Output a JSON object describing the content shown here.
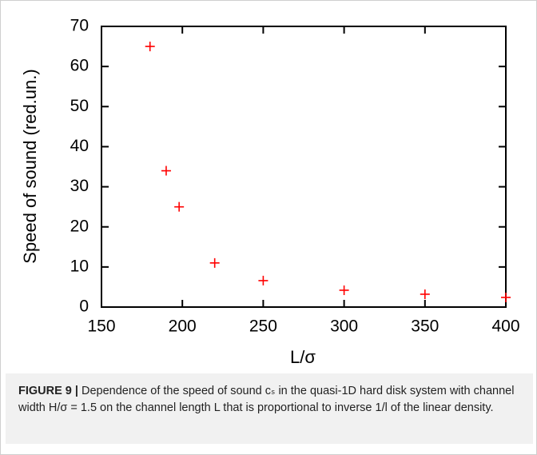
{
  "chart_data": {
    "type": "scatter",
    "xlabel": "L/σ",
    "ylabel": "Speed of sound (red.un.)",
    "series": [
      {
        "color": "#ff0000",
        "x": [
          180,
          190,
          198,
          220,
          250,
          300,
          350,
          400
        ],
        "values": [
          65,
          34,
          25,
          11,
          6.6,
          4.2,
          3.2,
          2.4
        ]
      }
    ],
    "xlim": [
      150,
      400
    ],
    "xticks": [
      150,
      200,
      250,
      300,
      350,
      400
    ],
    "ylim": [
      0,
      70
    ],
    "yticks": [
      0,
      10,
      20,
      30,
      40,
      50,
      60,
      70
    ]
  },
  "caption": {
    "label": "FIGURE 9 |",
    "text": "Dependence of the speed of sound cₛ in the quasi-1D hard disk system with channel width H/σ = 1.5 on the channel length L that is proportional to inverse 1/l of the linear density."
  }
}
